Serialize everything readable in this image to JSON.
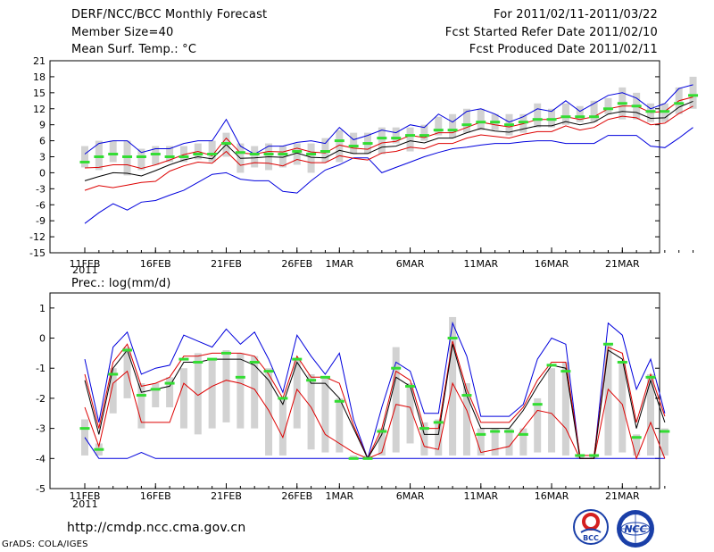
{
  "header": {
    "title": "DERF/NCC/BCC Monthly Forecast",
    "member_size": "Member Size=40",
    "variable": "Mean Surf. Temp.: °C",
    "period": "For 2011/02/11-2011/03/22",
    "refer_date": "Fcst Started Refer Date 2011/02/10",
    "produced_date": "Fcst Produced Date 2011/02/11"
  },
  "footer": {
    "url": "http://cmdp.ncc.cma.gov.cn",
    "grads": "GrADS: COLA/IGES",
    "logo_left_text": "BCC",
    "logo_right_text": "NCC"
  },
  "colors": {
    "envelope": "#0000dd",
    "spread": "#dd0000",
    "mean": "#000000",
    "bar": "#d2d2d2",
    "median": "#33dd33"
  },
  "chart_data": [
    {
      "type": "line",
      "title": "Mean Surf. Temp.: °C",
      "x_start": 11,
      "x_labels": [
        {
          "day": 11,
          "label": "11FEB"
        },
        {
          "day": 16,
          "label": "16FEB"
        },
        {
          "day": 21,
          "label": "21FEB"
        },
        {
          "day": 26,
          "label": "26FEB"
        },
        {
          "day": 29,
          "label": "1MAR"
        },
        {
          "day": 34,
          "label": "6MAR"
        },
        {
          "day": 39,
          "label": "11MAR"
        },
        {
          "day": 44,
          "label": "16MAR"
        },
        {
          "day": 49,
          "label": "21MAR"
        }
      ],
      "x_sub_label": "2011",
      "ylim": [
        -15,
        21
      ],
      "yticks": [
        -15,
        -12,
        -9,
        -6,
        -3,
        0,
        3,
        6,
        9,
        12,
        15,
        18,
        21
      ],
      "series": [
        {
          "name": "max",
          "role": "envelope",
          "values": [
            3.5,
            5.5,
            6,
            6,
            3.8,
            4.5,
            4.5,
            5.5,
            6,
            6,
            10,
            5,
            3.5,
            5,
            5,
            5.7,
            6,
            5.5,
            8.5,
            6.2,
            7,
            8,
            7.5,
            9,
            8.5,
            11,
            9.5,
            11.5,
            12,
            11,
            9.5,
            10.5,
            12,
            11.5,
            13.5,
            11.5,
            13,
            14.5,
            15,
            14,
            12,
            13,
            15.8,
            16.5
          ]
        },
        {
          "name": "upper",
          "role": "spread",
          "values": [
            0.9,
            1,
            1.5,
            1.5,
            0.8,
            1.5,
            2.4,
            3.4,
            4,
            3.2,
            6.5,
            3.7,
            3.5,
            4,
            3.9,
            4.6,
            3.9,
            3.7,
            5.2,
            4.6,
            4.4,
            5.6,
            5.9,
            7,
            6.6,
            7.5,
            7.5,
            8.5,
            9.5,
            9,
            8.6,
            9.2,
            10,
            10,
            10.5,
            10,
            10.5,
            12,
            12.5,
            12.5,
            11.3,
            11.5,
            13.5,
            14.2
          ]
        },
        {
          "name": "mean",
          "role": "mean",
          "values": [
            -1.5,
            -0.7,
            0,
            -0.1,
            -0.6,
            0.4,
            1.5,
            2.4,
            3,
            2.6,
            5.3,
            2.7,
            2.8,
            3,
            2.9,
            3.7,
            2.9,
            2.8,
            4.2,
            3.6,
            3.6,
            4.8,
            5,
            6,
            5.6,
            6.5,
            6.5,
            7.5,
            8.3,
            7.8,
            7.6,
            8.2,
            8.8,
            8.8,
            9.6,
            9,
            9.5,
            11,
            11.5,
            11.3,
            10.2,
            10.3,
            12.3,
            13.4
          ]
        },
        {
          "name": "lower",
          "role": "spread",
          "values": [
            -3.3,
            -2.4,
            -2.8,
            -2.3,
            -1.8,
            -1.6,
            0.3,
            1.3,
            2,
            1.8,
            4,
            1.4,
            1.9,
            1.8,
            1.3,
            2.5,
            1.9,
            1.9,
            3.2,
            2.7,
            2.4,
            3.7,
            4,
            4.8,
            4.5,
            5.5,
            5.5,
            6.5,
            7.1,
            6.8,
            6.5,
            7.2,
            7.7,
            7.7,
            8.8,
            8,
            8.5,
            10,
            10.6,
            10.3,
            9,
            9.3,
            11.1,
            12.5
          ]
        },
        {
          "name": "min",
          "role": "envelope",
          "values": [
            -9.5,
            -7.5,
            -5.8,
            -7,
            -5.5,
            -5.2,
            -4.2,
            -3.3,
            -1.8,
            -0.3,
            0,
            -1.2,
            -1.5,
            -1.5,
            -3.5,
            -3.8,
            -1.5,
            0.5,
            1.5,
            2.8,
            2.8,
            0,
            1,
            2,
            3,
            3.8,
            4.5,
            4.8,
            5.2,
            5.5,
            5.5,
            5.8,
            6,
            6,
            5.5,
            5.5,
            5.5,
            7,
            7,
            7,
            5,
            4.7,
            6.5,
            8.5
          ]
        },
        {
          "name": "median",
          "role": "median",
          "values": [
            2,
            3,
            3.5,
            3,
            3,
            3.5,
            3,
            3,
            3.5,
            3.5,
            5.5,
            3.8,
            3.5,
            3.5,
            3.5,
            4,
            3.5,
            4,
            6,
            5,
            5.5,
            6.5,
            6.5,
            7,
            7,
            8,
            8,
            9,
            9.5,
            9.5,
            9,
            9.5,
            10,
            10,
            10.5,
            10.5,
            10.5,
            12,
            13,
            12.5,
            11.5,
            11.5,
            13,
            14.5
          ]
        },
        {
          "name": "bar_high",
          "role": "bar",
          "values": [
            5,
            6,
            6,
            6,
            4.5,
            5,
            5,
            5,
            5.5,
            6,
            7.5,
            5.5,
            5,
            5.5,
            5,
            5.5,
            5.5,
            6.5,
            8,
            7.5,
            7.5,
            8.5,
            8.5,
            8.5,
            9,
            10.5,
            11,
            12,
            12,
            11,
            11,
            11,
            13,
            12,
            13,
            12.5,
            13.5,
            14,
            16,
            15,
            13,
            13,
            16,
            18
          ]
        },
        {
          "name": "bar_low",
          "role": "bar",
          "values": [
            1,
            0.5,
            2,
            -0.5,
            0.5,
            1.5,
            2,
            2,
            2.5,
            2,
            3,
            0,
            1,
            0.5,
            1,
            1.5,
            0,
            2,
            2,
            3.5,
            3.5,
            3.5,
            5.5,
            4,
            6,
            7,
            6.5,
            7.5,
            8,
            8,
            7,
            7.5,
            8.5,
            8.5,
            9,
            9.5,
            9.5,
            11,
            10,
            10,
            9.5,
            9.5,
            11,
            12
          ]
        }
      ]
    },
    {
      "type": "line",
      "title": "Prec.: log(mm/d)",
      "x_start": 11,
      "x_labels": [
        {
          "day": 11,
          "label": "11FEB"
        },
        {
          "day": 16,
          "label": "16FEB"
        },
        {
          "day": 21,
          "label": "21FEB"
        },
        {
          "day": 26,
          "label": "26FEB"
        },
        {
          "day": 29,
          "label": "1MAR"
        },
        {
          "day": 34,
          "label": "6MAR"
        },
        {
          "day": 39,
          "label": "11MAR"
        },
        {
          "day": 44,
          "label": "16MAR"
        },
        {
          "day": 49,
          "label": "21MAR"
        }
      ],
      "x_sub_label": "2011",
      "ylim": [
        -5,
        1.5
      ],
      "yticks": [
        -5,
        -4,
        -3,
        -2,
        -1,
        0,
        1
      ],
      "series": [
        {
          "name": "max",
          "role": "envelope",
          "values": [
            -0.7,
            -2.8,
            -0.3,
            0.2,
            -1.2,
            -1,
            -0.9,
            0.1,
            -0.1,
            -0.3,
            0.3,
            -0.2,
            0.2,
            -0.7,
            -1.8,
            0.1,
            -0.6,
            -1.2,
            -0.5,
            -2.7,
            -4,
            -2.3,
            -0.8,
            -1.1,
            -2.5,
            -2.5,
            0.5,
            -0.6,
            -2.6,
            -2.6,
            -2.6,
            -2.2,
            -0.7,
            0,
            -0.2,
            -4,
            -4,
            0.5,
            0.1,
            -1.7,
            -0.7,
            -2.5
          ]
        },
        {
          "name": "upper",
          "role": "spread",
          "values": [
            -1.2,
            -3,
            -0.8,
            -0.2,
            -1.6,
            -1.5,
            -1.3,
            -0.6,
            -0.6,
            -0.5,
            -0.5,
            -0.5,
            -0.6,
            -1.2,
            -2,
            -0.6,
            -1.3,
            -1.3,
            -1.5,
            -2.9,
            -4,
            -3,
            -1.1,
            -1.4,
            -3,
            -3,
            -0.1,
            -1.7,
            -2.8,
            -2.8,
            -2.8,
            -2.3,
            -1.4,
            -0.8,
            -0.8,
            -3.9,
            -3.9,
            -0.3,
            -0.5,
            -2.8,
            -1.2,
            -2.6
          ]
        },
        {
          "name": "mean",
          "role": "mean",
          "values": [
            -1.4,
            -3.2,
            -1,
            -0.4,
            -1.8,
            -1.7,
            -1.6,
            -0.8,
            -0.8,
            -0.7,
            -0.7,
            -0.7,
            -0.9,
            -1.4,
            -2.2,
            -0.8,
            -1.5,
            -1.5,
            -2,
            -3,
            -4,
            -3.2,
            -1.3,
            -1.6,
            -3.2,
            -3.2,
            -0.2,
            -1.9,
            -3,
            -3,
            -3,
            -2.4,
            -1.6,
            -0.9,
            -1,
            -4,
            -4,
            -0.4,
            -0.7,
            -3,
            -1.4,
            -2.8
          ]
        },
        {
          "name": "lower",
          "role": "spread",
          "values": [
            -2.3,
            -3.6,
            -1.5,
            -1.1,
            -2.8,
            -2.8,
            -2.8,
            -1.5,
            -1.9,
            -1.6,
            -1.4,
            -1.5,
            -1.7,
            -2.4,
            -3.3,
            -1.7,
            -2.3,
            -3.2,
            -3.5,
            -3.8,
            -4,
            -3.8,
            -2.2,
            -2.3,
            -3.6,
            -3.7,
            -1.5,
            -2.4,
            -3.8,
            -3.7,
            -3.6,
            -3,
            -2.4,
            -2.5,
            -3,
            -4,
            -4,
            -1.7,
            -2.2,
            -4,
            -2.8,
            -4
          ]
        },
        {
          "name": "min",
          "role": "envelope",
          "values": [
            -3.3,
            -4,
            -4,
            -4,
            -3.8,
            -4,
            -4,
            -4,
            -4,
            -4,
            -4,
            -4,
            -4,
            -4,
            -4,
            -4,
            -4,
            -4,
            -4,
            -4,
            -4,
            -4,
            -4,
            -4,
            -4,
            -4,
            -4,
            -4,
            -4,
            -4,
            -4,
            -4,
            -4,
            -4,
            -4,
            -4,
            -4,
            -4,
            -4,
            -4,
            -4,
            -4
          ]
        },
        {
          "name": "median",
          "role": "median",
          "values": [
            -3,
            -3.7,
            -1.2,
            -0.4,
            -1.9,
            -1.7,
            -1.5,
            -0.7,
            -0.8,
            -0.7,
            -0.5,
            -1.3,
            -0.8,
            -1.1,
            -2,
            -0.7,
            -1.4,
            -1.3,
            -2.1,
            -4,
            -4,
            -3.1,
            -1,
            -1.6,
            -3,
            -2.8,
            0,
            -1.9,
            -3.2,
            -3.1,
            -3.1,
            -3.2,
            -2.2,
            -0.9,
            -1.1,
            -3.9,
            -3.9,
            -0.2,
            -0.8,
            -3.3,
            -1.3,
            -3.1
          ]
        },
        {
          "name": "bar_high",
          "role": "bar",
          "values": [
            -2.7,
            -3.5,
            -1,
            -0.3,
            -1.5,
            -1.5,
            -1.3,
            -1,
            -0.5,
            -0.7,
            -0.4,
            -0.5,
            -0.6,
            -1,
            -2,
            -0.7,
            -1.2,
            -1.3,
            -2,
            -3.9,
            -3.9,
            -3,
            -0.3,
            -1.5,
            -2.8,
            -2.7,
            0.7,
            -1.5,
            -3,
            -3,
            -3,
            -3,
            -2,
            -1,
            -0.8,
            -3.9,
            -3.9,
            -0.2,
            -0.8,
            -3.2,
            -1.2,
            -3
          ]
        },
        {
          "name": "bar_low",
          "role": "bar",
          "values": [
            -3.9,
            -3.9,
            -2.5,
            -2,
            -3,
            -2.3,
            -2.3,
            -3,
            -3.2,
            -3,
            -2.8,
            -3,
            -3,
            -3.9,
            -3.9,
            -3,
            -3.7,
            -3.8,
            -3.8,
            -4,
            -4,
            -3.9,
            -3.8,
            -3.5,
            -3.9,
            -3.9,
            -3.9,
            -3.9,
            -3.9,
            -3.9,
            -3.9,
            -3.9,
            -3.8,
            -3.8,
            -3.9,
            -4,
            -4,
            -3.9,
            -3.8,
            -3.9,
            -3.9,
            -3.9
          ]
        }
      ]
    }
  ]
}
